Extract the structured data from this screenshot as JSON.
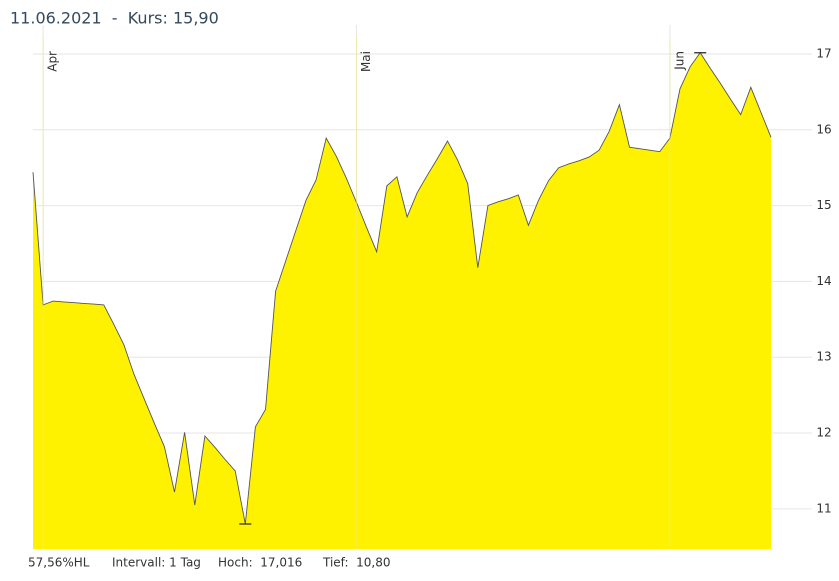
{
  "chart_data": {
    "type": "area",
    "title": "11.06.2021  -  Kurs: 15,90",
    "categories": [
      null,
      "Apr",
      null,
      null,
      null,
      null,
      null,
      null,
      null,
      null,
      null,
      null,
      null,
      null,
      null,
      null,
      null,
      null,
      null,
      null,
      null,
      null,
      null,
      null,
      null,
      null,
      null,
      null,
      null,
      null,
      null,
      null,
      "Mai",
      null,
      null,
      null,
      null,
      null,
      null,
      null,
      null,
      null,
      null,
      null,
      null,
      null,
      null,
      null,
      null,
      null,
      null,
      null,
      null,
      null,
      null,
      null,
      null,
      null,
      null,
      null,
      null,
      null,
      null,
      "Jun",
      null,
      null,
      null,
      null,
      null,
      null,
      null,
      null,
      null,
      null
    ],
    "values": [
      15.44,
      13.69,
      13.74,
      13.73,
      13.72,
      13.71,
      13.7,
      13.69,
      13.43,
      13.16,
      12.77,
      12.45,
      12.13,
      11.82,
      11.22,
      12.01,
      11.05,
      11.96,
      11.81,
      11.65,
      11.5,
      10.8,
      12.08,
      12.31,
      13.87,
      14.27,
      14.67,
      15.07,
      15.34,
      15.89,
      15.65,
      15.36,
      15.04,
      14.71,
      14.39,
      15.26,
      15.38,
      14.85,
      15.17,
      15.4,
      15.62,
      15.85,
      15.6,
      15.29,
      14.18,
      15.0,
      15.05,
      15.09,
      15.14,
      14.74,
      15.07,
      15.33,
      15.5,
      15.55,
      15.59,
      15.64,
      15.73,
      15.98,
      16.33,
      15.77,
      15.75,
      15.73,
      15.71,
      15.89,
      16.54,
      16.83,
      17.016,
      16.81,
      16.61,
      16.4,
      16.2,
      16.56,
      16.23,
      15.9
    ],
    "color": "#fff200",
    "line_color": "#555555",
    "ylim": [
      10.47,
      17.25
    ],
    "yticks": [
      11,
      12,
      13,
      14,
      15,
      16,
      17
    ],
    "grid": true,
    "footer": [
      "57,56%HL",
      "Intervall: 1 Tag",
      "Hoch:  17,016",
      "Tief:  10,80"
    ]
  }
}
